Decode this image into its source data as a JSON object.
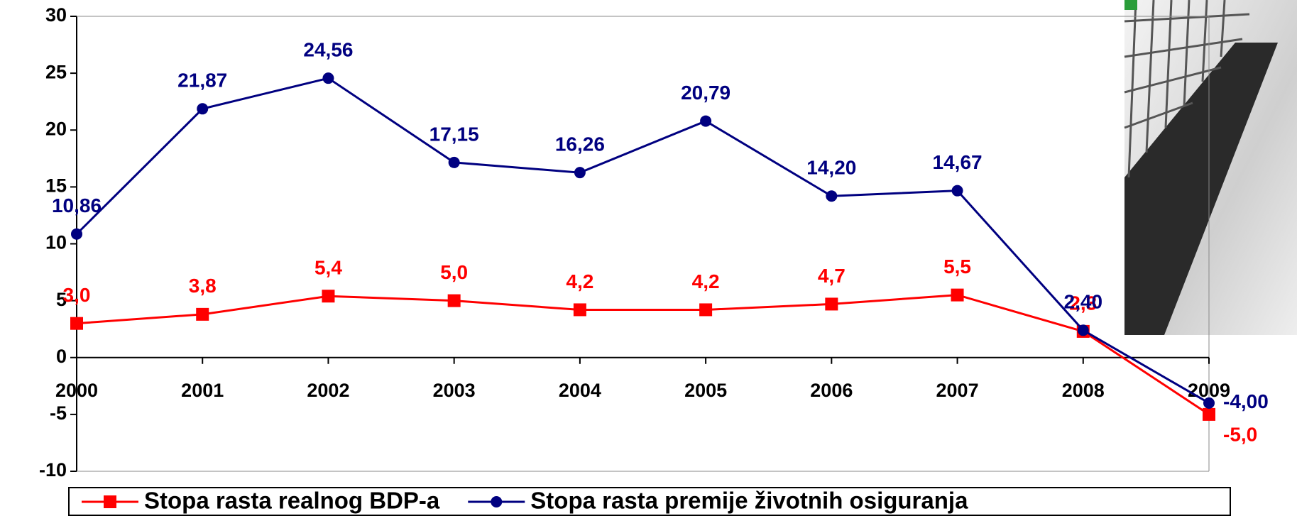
{
  "chart_data": {
    "type": "line",
    "categories": [
      "2000",
      "2001",
      "2002",
      "2003",
      "2004",
      "2005",
      "2006",
      "2007",
      "2008",
      "2009"
    ],
    "series": [
      {
        "name": "Stopa rasta realnog BDP-a",
        "color": "#ff0000",
        "marker": "square",
        "values": [
          3.0,
          3.8,
          5.4,
          5.0,
          4.2,
          4.2,
          4.7,
          5.5,
          2.3,
          -5.0
        ],
        "value_labels": [
          "3,0",
          "3,8",
          "5,4",
          "5,0",
          "4,2",
          "4,2",
          "4,7",
          "5,5",
          "2,3",
          "-5,0"
        ]
      },
      {
        "name": "Stopa rasta premije životnih osiguranja",
        "color": "#000080",
        "marker": "circle",
        "values": [
          10.86,
          21.87,
          24.56,
          17.15,
          16.26,
          20.79,
          14.2,
          14.67,
          2.4,
          -4.0
        ],
        "value_labels": [
          "10,86",
          "21,87",
          "24,56",
          "17,15",
          "16,26",
          "20,79",
          "14,20",
          "14,67",
          "2,40",
          "-4,00"
        ]
      }
    ],
    "ylim": [
      -10,
      30
    ],
    "yticks": [
      -10,
      -5,
      0,
      5,
      10,
      15,
      20,
      25,
      30
    ],
    "legend": "bottom"
  }
}
